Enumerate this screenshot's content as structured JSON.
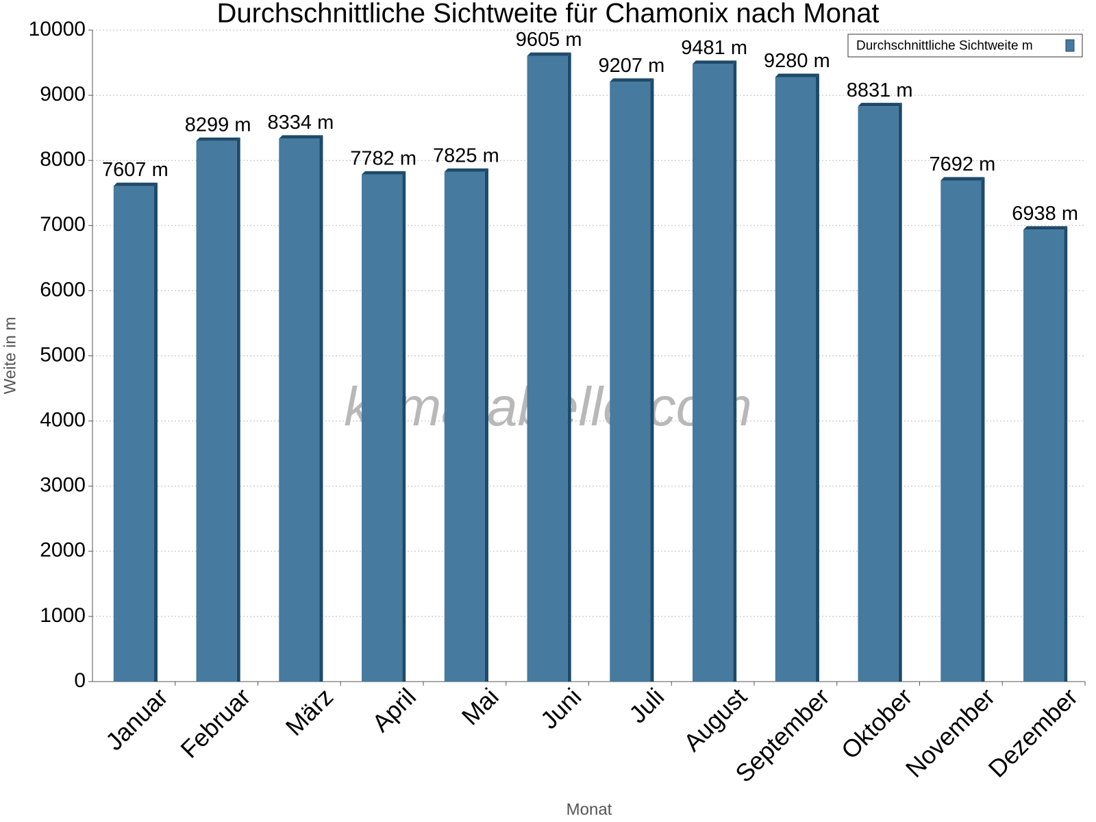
{
  "chart_data": {
    "type": "bar",
    "title": "Durchschnittliche Sichtweite für Chamonix nach Monat",
    "x_label": "Monat",
    "y_label": "Weite in m",
    "watermark": "klimatabelle.com",
    "categories": [
      "Januar",
      "Februar",
      "März",
      "April",
      "Mai",
      "Juni",
      "Juli",
      "August",
      "September",
      "Oktober",
      "November",
      "Dezember"
    ],
    "series": [
      {
        "name": "Durchschnittliche Sichtweite m",
        "color": "#467a9e",
        "values": [
          7607,
          8299,
          8334,
          7782,
          7825,
          9605,
          9207,
          9481,
          9280,
          8831,
          7692,
          6938
        ],
        "value_labels": [
          "7607 m",
          "8299 m",
          "8334 m",
          "7782 m",
          "7825 m",
          "9605 m",
          "9207 m",
          "9481 m",
          "9280 m",
          "8831 m",
          "7692 m",
          "6938 m"
        ]
      }
    ],
    "ylim": [
      0,
      10000
    ],
    "yticks": [
      0,
      1000,
      2000,
      3000,
      4000,
      5000,
      6000,
      7000,
      8000,
      9000,
      10000
    ],
    "grid": true,
    "legend": "top-right"
  }
}
